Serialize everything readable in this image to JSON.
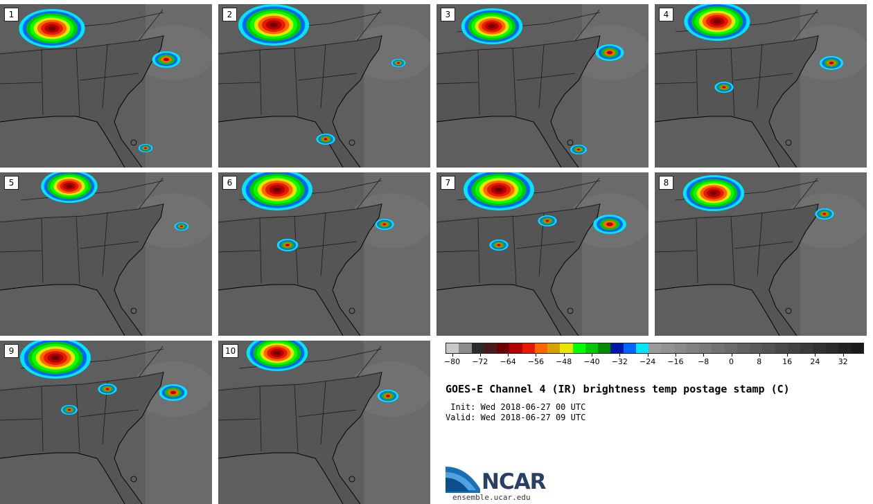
{
  "panels": [
    {
      "label": "1"
    },
    {
      "label": "2"
    },
    {
      "label": "3"
    },
    {
      "label": "4"
    },
    {
      "label": "5"
    },
    {
      "label": "6"
    },
    {
      "label": "7"
    },
    {
      "label": "8"
    },
    {
      "label": "9"
    },
    {
      "label": "10"
    }
  ],
  "colorbar": {
    "colors": [
      "#c8c8c8",
      "#8c8c8c",
      "#2b2b2b",
      "#4a1a1a",
      "#6e0000",
      "#b30000",
      "#e61a00",
      "#ff6600",
      "#d9a100",
      "#e6e600",
      "#00ff00",
      "#00c800",
      "#008c00",
      "#0018a8",
      "#0064ff",
      "#00e6ff",
      "#9a9a9a",
      "#929292",
      "#8a8a8a",
      "#828282",
      "#7a7a7a",
      "#727272",
      "#6a6a6a",
      "#626262",
      "#5a5a5a",
      "#525252",
      "#4a4a4a",
      "#424242",
      "#3a3a3a",
      "#323232",
      "#2a2a2a",
      "#222222",
      "#1a1a1a"
    ],
    "tick_labels": [
      "−80",
      "−72",
      "−64",
      "−56",
      "−48",
      "−40",
      "−32",
      "−24",
      "−16",
      "−8",
      "0",
      "8",
      "16",
      "24",
      "32"
    ]
  },
  "title": "GOES-E Channel 4 (IR) brightness temp postage stamp (C)",
  "init_text": " Init: Wed 2018-06-27 00 UTC",
  "valid_text": "Valid: Wed 2018-06-27 09 UTC",
  "logo": {
    "wordmark": "NCAR",
    "url": "ensemble.ucar.edu"
  }
}
